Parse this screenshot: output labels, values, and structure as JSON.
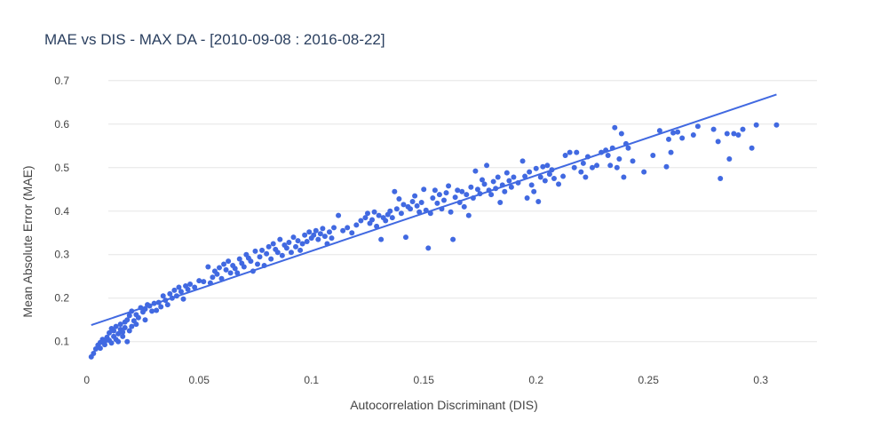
{
  "chart_data": {
    "type": "scatter",
    "title": "MAE vs DIS - MAX DA - [2010-09-08 : 2016-08-22]",
    "xlabel": "Autocorrelation Discriminant (DIS)",
    "ylabel": "Mean Absolute Error (MAE)",
    "xlim": [
      -0.007,
      0.325
    ],
    "ylim": [
      0.028,
      0.722
    ],
    "xticks": [
      0,
      0.05,
      0.1,
      0.15,
      0.2,
      0.25,
      0.3
    ],
    "xtick_labels": [
      "0",
      "0.05",
      "0.1",
      "0.15",
      "0.2",
      "0.25",
      "0.3"
    ],
    "yticks": [
      0.1,
      0.2,
      0.3,
      0.4,
      0.5,
      0.6,
      0.7
    ],
    "ytick_labels": [
      "0.1",
      "0.2",
      "0.3",
      "0.4",
      "0.5",
      "0.6",
      "0.7"
    ],
    "grid": true,
    "legend": "none",
    "colors": {
      "marker": "#4169e1",
      "line": "#4169e1",
      "grid": "#e5e5e5",
      "text": "#444444",
      "title": "#2a3f5f"
    },
    "series": [
      {
        "type": "scatter",
        "points": [
          [
            0.002,
            0.065
          ],
          [
            0.003,
            0.073
          ],
          [
            0.004,
            0.083
          ],
          [
            0.005,
            0.092
          ],
          [
            0.006,
            0.098
          ],
          [
            0.006,
            0.085
          ],
          [
            0.007,
            0.105
          ],
          [
            0.008,
            0.1
          ],
          [
            0.008,
            0.093
          ],
          [
            0.009,
            0.11
          ],
          [
            0.01,
            0.103
          ],
          [
            0.01,
            0.12
          ],
          [
            0.011,
            0.097
          ],
          [
            0.011,
            0.13
          ],
          [
            0.012,
            0.112
          ],
          [
            0.012,
            0.125
          ],
          [
            0.013,
            0.105
          ],
          [
            0.013,
            0.135
          ],
          [
            0.014,
            0.118
          ],
          [
            0.014,
            0.1
          ],
          [
            0.015,
            0.128
          ],
          [
            0.015,
            0.14
          ],
          [
            0.016,
            0.112
          ],
          [
            0.016,
            0.122
          ],
          [
            0.017,
            0.145
          ],
          [
            0.017,
            0.132
          ],
          [
            0.018,
            0.1
          ],
          [
            0.018,
            0.15
          ],
          [
            0.019,
            0.16
          ],
          [
            0.019,
            0.125
          ],
          [
            0.02,
            0.135
          ],
          [
            0.02,
            0.17
          ],
          [
            0.021,
            0.148
          ],
          [
            0.022,
            0.14
          ],
          [
            0.022,
            0.162
          ],
          [
            0.023,
            0.155
          ],
          [
            0.024,
            0.178
          ],
          [
            0.025,
            0.168
          ],
          [
            0.026,
            0.175
          ],
          [
            0.026,
            0.15
          ],
          [
            0.027,
            0.185
          ],
          [
            0.028,
            0.182
          ],
          [
            0.029,
            0.17
          ],
          [
            0.03,
            0.188
          ],
          [
            0.031,
            0.172
          ],
          [
            0.032,
            0.19
          ],
          [
            0.033,
            0.18
          ],
          [
            0.034,
            0.205
          ],
          [
            0.035,
            0.195
          ],
          [
            0.036,
            0.185
          ],
          [
            0.037,
            0.21
          ],
          [
            0.038,
            0.2
          ],
          [
            0.039,
            0.218
          ],
          [
            0.04,
            0.205
          ],
          [
            0.041,
            0.225
          ],
          [
            0.042,
            0.215
          ],
          [
            0.043,
            0.198
          ],
          [
            0.044,
            0.228
          ],
          [
            0.045,
            0.22
          ],
          [
            0.046,
            0.232
          ],
          [
            0.048,
            0.225
          ],
          [
            0.05,
            0.24
          ],
          [
            0.052,
            0.238
          ],
          [
            0.054,
            0.272
          ],
          [
            0.055,
            0.235
          ],
          [
            0.056,
            0.248
          ],
          [
            0.057,
            0.262
          ],
          [
            0.058,
            0.255
          ],
          [
            0.059,
            0.27
          ],
          [
            0.06,
            0.245
          ],
          [
            0.061,
            0.278
          ],
          [
            0.062,
            0.265
          ],
          [
            0.063,
            0.285
          ],
          [
            0.064,
            0.258
          ],
          [
            0.065,
            0.275
          ],
          [
            0.066,
            0.268
          ],
          [
            0.067,
            0.258
          ],
          [
            0.068,
            0.29
          ],
          [
            0.069,
            0.28
          ],
          [
            0.07,
            0.272
          ],
          [
            0.071,
            0.3
          ],
          [
            0.072,
            0.292
          ],
          [
            0.073,
            0.285
          ],
          [
            0.074,
            0.262
          ],
          [
            0.075,
            0.308
          ],
          [
            0.076,
            0.278
          ],
          [
            0.077,
            0.295
          ],
          [
            0.078,
            0.31
          ],
          [
            0.079,
            0.275
          ],
          [
            0.08,
            0.302
          ],
          [
            0.081,
            0.318
          ],
          [
            0.082,
            0.29
          ],
          [
            0.083,
            0.325
          ],
          [
            0.084,
            0.312
          ],
          [
            0.085,
            0.305
          ],
          [
            0.086,
            0.335
          ],
          [
            0.087,
            0.298
          ],
          [
            0.088,
            0.322
          ],
          [
            0.089,
            0.315
          ],
          [
            0.09,
            0.328
          ],
          [
            0.091,
            0.305
          ],
          [
            0.092,
            0.34
          ],
          [
            0.093,
            0.318
          ],
          [
            0.094,
            0.332
          ],
          [
            0.095,
            0.31
          ],
          [
            0.096,
            0.325
          ],
          [
            0.097,
            0.345
          ],
          [
            0.098,
            0.33
          ],
          [
            0.099,
            0.352
          ],
          [
            0.1,
            0.338
          ],
          [
            0.101,
            0.345
          ],
          [
            0.102,
            0.355
          ],
          [
            0.103,
            0.335
          ],
          [
            0.104,
            0.348
          ],
          [
            0.105,
            0.36
          ],
          [
            0.106,
            0.342
          ],
          [
            0.107,
            0.325
          ],
          [
            0.108,
            0.352
          ],
          [
            0.109,
            0.338
          ],
          [
            0.11,
            0.362
          ],
          [
            0.112,
            0.39
          ],
          [
            0.114,
            0.355
          ],
          [
            0.116,
            0.362
          ],
          [
            0.118,
            0.35
          ],
          [
            0.12,
            0.368
          ],
          [
            0.122,
            0.378
          ],
          [
            0.124,
            0.385
          ],
          [
            0.125,
            0.395
          ],
          [
            0.126,
            0.372
          ],
          [
            0.127,
            0.38
          ],
          [
            0.128,
            0.398
          ],
          [
            0.129,
            0.365
          ],
          [
            0.13,
            0.39
          ],
          [
            0.131,
            0.335
          ],
          [
            0.132,
            0.385
          ],
          [
            0.133,
            0.378
          ],
          [
            0.134,
            0.392
          ],
          [
            0.135,
            0.4
          ],
          [
            0.136,
            0.385
          ],
          [
            0.137,
            0.445
          ],
          [
            0.138,
            0.405
          ],
          [
            0.139,
            0.428
          ],
          [
            0.14,
            0.395
          ],
          [
            0.141,
            0.415
          ],
          [
            0.142,
            0.34
          ],
          [
            0.143,
            0.41
          ],
          [
            0.144,
            0.405
          ],
          [
            0.145,
            0.422
          ],
          [
            0.146,
            0.435
          ],
          [
            0.147,
            0.412
          ],
          [
            0.148,
            0.398
          ],
          [
            0.149,
            0.42
          ],
          [
            0.15,
            0.45
          ],
          [
            0.151,
            0.402
          ],
          [
            0.152,
            0.315
          ],
          [
            0.153,
            0.395
          ],
          [
            0.154,
            0.43
          ],
          [
            0.155,
            0.448
          ],
          [
            0.156,
            0.418
          ],
          [
            0.157,
            0.438
          ],
          [
            0.158,
            0.405
          ],
          [
            0.159,
            0.425
          ],
          [
            0.16,
            0.442
          ],
          [
            0.161,
            0.458
          ],
          [
            0.162,
            0.398
          ],
          [
            0.163,
            0.335
          ],
          [
            0.164,
            0.432
          ],
          [
            0.165,
            0.448
          ],
          [
            0.166,
            0.42
          ],
          [
            0.167,
            0.445
          ],
          [
            0.168,
            0.41
          ],
          [
            0.169,
            0.438
          ],
          [
            0.17,
            0.39
          ],
          [
            0.171,
            0.455
          ],
          [
            0.172,
            0.43
          ],
          [
            0.173,
            0.492
          ],
          [
            0.174,
            0.45
          ],
          [
            0.175,
            0.44
          ],
          [
            0.176,
            0.472
          ],
          [
            0.177,
            0.462
          ],
          [
            0.178,
            0.505
          ],
          [
            0.179,
            0.448
          ],
          [
            0.18,
            0.438
          ],
          [
            0.181,
            0.468
          ],
          [
            0.182,
            0.452
          ],
          [
            0.183,
            0.478
          ],
          [
            0.184,
            0.42
          ],
          [
            0.185,
            0.46
          ],
          [
            0.186,
            0.445
          ],
          [
            0.187,
            0.488
          ],
          [
            0.188,
            0.47
          ],
          [
            0.189,
            0.455
          ],
          [
            0.19,
            0.478
          ],
          [
            0.192,
            0.465
          ],
          [
            0.194,
            0.515
          ],
          [
            0.195,
            0.48
          ],
          [
            0.196,
            0.43
          ],
          [
            0.197,
            0.49
          ],
          [
            0.198,
            0.46
          ],
          [
            0.199,
            0.445
          ],
          [
            0.2,
            0.498
          ],
          [
            0.201,
            0.422
          ],
          [
            0.202,
            0.478
          ],
          [
            0.203,
            0.502
          ],
          [
            0.204,
            0.47
          ],
          [
            0.205,
            0.505
          ],
          [
            0.206,
            0.485
          ],
          [
            0.207,
            0.495
          ],
          [
            0.208,
            0.475
          ],
          [
            0.21,
            0.462
          ],
          [
            0.212,
            0.48
          ],
          [
            0.213,
            0.528
          ],
          [
            0.215,
            0.535
          ],
          [
            0.217,
            0.5
          ],
          [
            0.218,
            0.535
          ],
          [
            0.22,
            0.49
          ],
          [
            0.221,
            0.51
          ],
          [
            0.222,
            0.478
          ],
          [
            0.223,
            0.525
          ],
          [
            0.225,
            0.5
          ],
          [
            0.227,
            0.505
          ],
          [
            0.229,
            0.535
          ],
          [
            0.231,
            0.54
          ],
          [
            0.232,
            0.528
          ],
          [
            0.233,
            0.505
          ],
          [
            0.234,
            0.545
          ],
          [
            0.235,
            0.592
          ],
          [
            0.236,
            0.5
          ],
          [
            0.237,
            0.52
          ],
          [
            0.238,
            0.578
          ],
          [
            0.239,
            0.478
          ],
          [
            0.24,
            0.555
          ],
          [
            0.241,
            0.545
          ],
          [
            0.243,
            0.515
          ],
          [
            0.248,
            0.49
          ],
          [
            0.252,
            0.528
          ],
          [
            0.255,
            0.585
          ],
          [
            0.258,
            0.502
          ],
          [
            0.259,
            0.565
          ],
          [
            0.26,
            0.535
          ],
          [
            0.261,
            0.58
          ],
          [
            0.263,
            0.582
          ],
          [
            0.265,
            0.568
          ],
          [
            0.27,
            0.575
          ],
          [
            0.272,
            0.595
          ],
          [
            0.279,
            0.588
          ],
          [
            0.281,
            0.56
          ],
          [
            0.282,
            0.475
          ],
          [
            0.285,
            0.578
          ],
          [
            0.286,
            0.52
          ],
          [
            0.288,
            0.578
          ],
          [
            0.29,
            0.575
          ],
          [
            0.292,
            0.588
          ],
          [
            0.296,
            0.545
          ],
          [
            0.298,
            0.598
          ],
          [
            0.307,
            0.598
          ]
        ]
      },
      {
        "type": "line",
        "points": [
          [
            0.002,
            0.138
          ],
          [
            0.307,
            0.668
          ]
        ]
      }
    ]
  }
}
